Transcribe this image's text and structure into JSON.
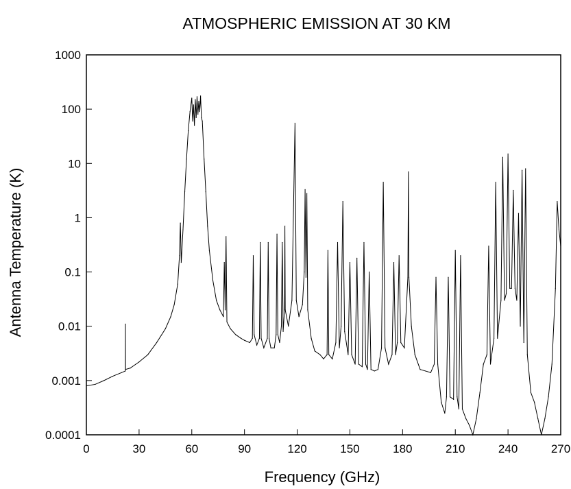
{
  "chart_data": {
    "type": "line",
    "title": "ATMOSPHERIC EMISSION AT 30 KM",
    "xlabel": "Frequency (GHz)",
    "ylabel": "Antenna Temperature (K)",
    "xscale": "linear",
    "yscale": "log",
    "xlim": [
      0,
      270
    ],
    "ylim": [
      0.0001,
      1000
    ],
    "xticks": [
      0,
      30,
      60,
      90,
      120,
      150,
      180,
      210,
      240,
      270
    ],
    "xtick_labels": [
      "0",
      "30",
      "60",
      "90",
      "120",
      "150",
      "180",
      "210",
      "240",
      "270"
    ],
    "yticks": [
      0.0001,
      0.001,
      0.01,
      0.1,
      1,
      10,
      100,
      1000
    ],
    "ytick_labels": [
      "0.0001",
      "0.001",
      "0.01",
      "0.1",
      "1",
      "10",
      "100",
      "1000"
    ],
    "grid": false,
    "series": [
      {
        "points": [
          [
            0,
            0.0008
          ],
          [
            5,
            0.00085
          ],
          [
            10,
            0.001
          ],
          [
            15,
            0.0012
          ],
          [
            20,
            0.0014
          ],
          [
            22.2,
            0.0015
          ],
          [
            22.235,
            0.011
          ],
          [
            22.27,
            0.0016
          ],
          [
            25,
            0.0017
          ],
          [
            30,
            0.0022
          ],
          [
            35,
            0.003
          ],
          [
            40,
            0.005
          ],
          [
            45,
            0.009
          ],
          [
            48,
            0.015
          ],
          [
            50,
            0.025
          ],
          [
            52,
            0.06
          ],
          [
            53,
            0.2
          ],
          [
            53.5,
            0.8
          ],
          [
            54,
            0.15
          ],
          [
            55,
            0.6
          ],
          [
            56,
            3
          ],
          [
            57,
            12
          ],
          [
            58,
            40
          ],
          [
            59,
            90
          ],
          [
            60,
            160
          ],
          [
            60.5,
            60
          ],
          [
            61,
            120
          ],
          [
            61.5,
            50
          ],
          [
            62,
            150
          ],
          [
            62.5,
            70
          ],
          [
            63,
            170
          ],
          [
            63.5,
            80
          ],
          [
            64,
            140
          ],
          [
            64.5,
            90
          ],
          [
            65,
            175
          ],
          [
            65.5,
            70
          ],
          [
            66,
            60
          ],
          [
            67,
            12
          ],
          [
            68,
            3
          ],
          [
            69,
            0.7
          ],
          [
            70,
            0.25
          ],
          [
            72,
            0.07
          ],
          [
            74,
            0.03
          ],
          [
            76,
            0.02
          ],
          [
            78,
            0.015
          ],
          [
            78.5,
            0.15
          ],
          [
            79,
            0.02
          ],
          [
            79.5,
            0.45
          ],
          [
            80,
            0.012
          ],
          [
            82,
            0.009
          ],
          [
            85,
            0.007
          ],
          [
            88,
            0.006
          ],
          [
            90,
            0.0055
          ],
          [
            93,
            0.005
          ],
          [
            94.5,
            0.006
          ],
          [
            95,
            0.2
          ],
          [
            95.5,
            0.007
          ],
          [
            97,
            0.0045
          ],
          [
            98.5,
            0.006
          ],
          [
            99,
            0.35
          ],
          [
            99.5,
            0.006
          ],
          [
            101,
            0.004
          ],
          [
            103,
            0.006
          ],
          [
            103.5,
            0.35
          ],
          [
            104,
            0.006
          ],
          [
            105,
            0.004
          ],
          [
            107,
            0.004
          ],
          [
            108,
            0.007
          ],
          [
            108.5,
            0.5
          ],
          [
            109,
            0.007
          ],
          [
            110,
            0.005
          ],
          [
            111,
            0.01
          ],
          [
            111.5,
            0.35
          ],
          [
            112,
            0.008
          ],
          [
            112.8,
            0.02
          ],
          [
            113,
            0.7
          ],
          [
            113.2,
            0.02
          ],
          [
            115,
            0.01
          ],
          [
            117,
            0.03
          ],
          [
            118.75,
            55
          ],
          [
            119.5,
            0.03
          ],
          [
            121,
            0.015
          ],
          [
            123,
            0.025
          ],
          [
            124,
            0.1
          ],
          [
            124.5,
            3.3
          ],
          [
            125,
            0.08
          ],
          [
            125.5,
            2.8
          ],
          [
            126,
            0.02
          ],
          [
            128,
            0.006
          ],
          [
            130,
            0.0035
          ],
          [
            133,
            0.003
          ],
          [
            135,
            0.0025
          ],
          [
            137,
            0.003
          ],
          [
            137.5,
            0.25
          ],
          [
            138,
            0.003
          ],
          [
            140,
            0.0025
          ],
          [
            142,
            0.005
          ],
          [
            143,
            0.35
          ],
          [
            144,
            0.004
          ],
          [
            145,
            0.01
          ],
          [
            146,
            2
          ],
          [
            147,
            0.008
          ],
          [
            149,
            0.003
          ],
          [
            150,
            0.15
          ],
          [
            151,
            0.003
          ],
          [
            153,
            0.002
          ],
          [
            154,
            0.18
          ],
          [
            155,
            0.002
          ],
          [
            157,
            0.0018
          ],
          [
            158,
            0.35
          ],
          [
            159,
            0.002
          ],
          [
            160,
            0.0016
          ],
          [
            161,
            0.1
          ],
          [
            162,
            0.0016
          ],
          [
            164,
            0.0015
          ],
          [
            166,
            0.0016
          ],
          [
            168,
            0.004
          ],
          [
            169,
            4.5
          ],
          [
            170,
            0.004
          ],
          [
            172,
            0.002
          ],
          [
            174,
            0.003
          ],
          [
            175,
            0.15
          ],
          [
            176,
            0.003
          ],
          [
            177,
            0.005
          ],
          [
            178,
            0.2
          ],
          [
            179,
            0.005
          ],
          [
            181,
            0.004
          ],
          [
            183,
            0.08
          ],
          [
            183.31,
            7
          ],
          [
            183.6,
            0.08
          ],
          [
            185,
            0.01
          ],
          [
            187,
            0.003
          ],
          [
            190,
            0.0016
          ],
          [
            193,
            0.0015
          ],
          [
            196,
            0.0014
          ],
          [
            198,
            0.002
          ],
          [
            199,
            0.08
          ],
          [
            200,
            0.002
          ],
          [
            202,
            0.0004
          ],
          [
            204,
            0.00025
          ],
          [
            205,
            0.0005
          ],
          [
            206,
            0.08
          ],
          [
            207,
            0.0005
          ],
          [
            209,
            0.00045
          ],
          [
            210,
            0.25
          ],
          [
            211,
            0.0005
          ],
          [
            212,
            0.0003
          ],
          [
            213,
            0.2
          ],
          [
            214,
            0.0003
          ],
          [
            216,
            0.0002
          ],
          [
            218,
            0.00015
          ],
          [
            220,
            0.0001
          ],
          [
            222,
            0.0002
          ],
          [
            224,
            0.0006
          ],
          [
            226,
            0.002
          ],
          [
            228,
            0.003
          ],
          [
            229,
            0.3
          ],
          [
            230,
            0.002
          ],
          [
            232,
            0.006
          ],
          [
            233,
            4.5
          ],
          [
            234,
            0.006
          ],
          [
            236,
            0.03
          ],
          [
            237,
            13
          ],
          [
            238,
            0.03
          ],
          [
            239,
            0.04
          ],
          [
            240,
            15
          ],
          [
            241,
            0.05
          ],
          [
            242,
            0.05
          ],
          [
            243,
            3.2
          ],
          [
            244,
            0.05
          ],
          [
            245,
            0.03
          ],
          [
            246,
            1.2
          ],
          [
            247,
            0.01
          ],
          [
            248,
            7.5
          ],
          [
            249,
            0.005
          ],
          [
            250,
            8
          ],
          [
            251,
            0.003
          ],
          [
            253,
            0.0006
          ],
          [
            255,
            0.0004
          ],
          [
            257,
            0.0002
          ],
          [
            259,
            0.0001
          ],
          [
            261,
            0.0002
          ],
          [
            263,
            0.0005
          ],
          [
            265,
            0.002
          ],
          [
            267,
            0.05
          ],
          [
            268,
            2
          ],
          [
            269,
            0.6
          ],
          [
            270,
            0.3
          ]
        ]
      }
    ]
  }
}
